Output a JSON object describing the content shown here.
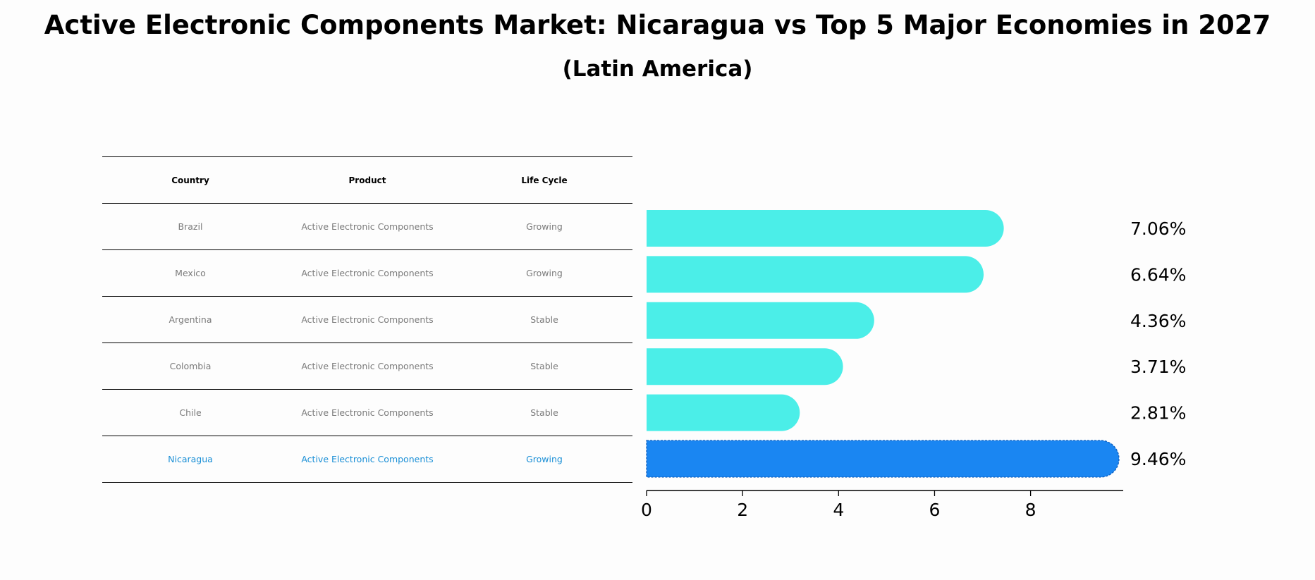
{
  "title": "Active Electronic Components Market: Nicaragua vs Top 5 Major Economies in 2027",
  "subtitle": "(Latin America)",
  "table": {
    "headers": [
      "Country",
      "Product",
      "Life Cycle"
    ],
    "rows": [
      {
        "country": "Brazil",
        "product": "Active Electronic Components",
        "life_cycle": "Growing"
      },
      {
        "country": "Mexico",
        "product": "Active Electronic Components",
        "life_cycle": "Growing"
      },
      {
        "country": "Argentina",
        "product": "Active Electronic Components",
        "life_cycle": "Stable"
      },
      {
        "country": "Colombia",
        "product": "Active Electronic Components",
        "life_cycle": "Stable"
      },
      {
        "country": "Chile",
        "product": "Active Electronic Components",
        "life_cycle": "Stable"
      },
      {
        "country": "Nicaragua",
        "product": "Active Electronic Components",
        "life_cycle": "Growing"
      }
    ]
  },
  "chart_data": {
    "type": "bar",
    "orientation": "horizontal",
    "categories": [
      "Brazil",
      "Mexico",
      "Argentina",
      "Colombia",
      "Chile",
      "Nicaragua"
    ],
    "values": [
      7.06,
      6.64,
      4.36,
      3.71,
      2.81,
      9.46
    ],
    "value_labels": [
      "7.06%",
      "6.64%",
      "4.36%",
      "3.71%",
      "2.81%",
      "9.46%"
    ],
    "xticks": [
      0,
      2,
      4,
      6,
      8
    ],
    "xlim": [
      0,
      9.93
    ],
    "highlight": "Nicaragua",
    "colors": {
      "default": "#4beee8",
      "highlight": "#1a86f2",
      "text": "#000000"
    }
  }
}
